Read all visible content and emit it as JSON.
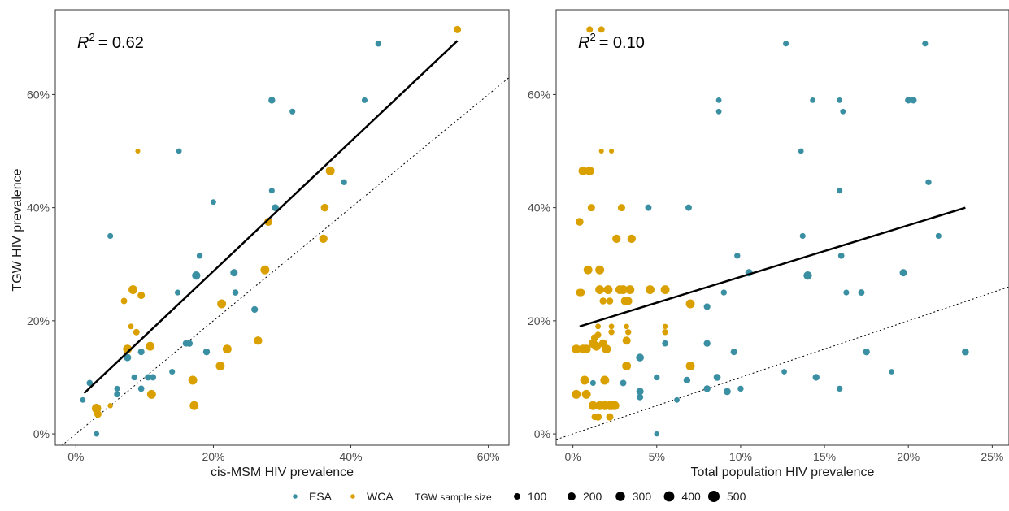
{
  "colors": {
    "ESA": "#3a8fa3",
    "WCA": "#d9a000",
    "fit_line": "#000000",
    "panel_border": "#333333",
    "text": "#1a1a1a"
  },
  "y_axis": {
    "label": "TGW HIV prevalence",
    "ylim": [
      -0.02,
      0.75
    ],
    "ticks": [
      0,
      0.2,
      0.4,
      0.6
    ],
    "tick_labels": [
      "0%",
      "20%",
      "40%",
      "60%"
    ]
  },
  "chart_data": [
    {
      "type": "scatter",
      "xlabel": "cis-MSM HIV prevalence",
      "ylabel": "TGW HIV prevalence",
      "xlim": [
        -0.03,
        0.63
      ],
      "x_ticks": [
        0,
        0.2,
        0.4,
        0.6
      ],
      "x_tick_labels": [
        "0%",
        "20%",
        "40%",
        "60%"
      ],
      "annotation": {
        "r2_prefix": "R",
        "r2_sup": "2",
        "r2_value": "= 0.62"
      },
      "fit_line": {
        "x": [
          0.012,
          0.555
        ],
        "y": [
          0.072,
          0.695
        ]
      },
      "reference_line": {
        "x": [
          -0.03,
          0.63
        ],
        "y": [
          -0.03,
          0.63
        ]
      },
      "series": [
        {
          "name": "ESA",
          "points": [
            [
              0.01,
              0.06,
              60
            ],
            [
              0.02,
              0.09,
              90
            ],
            [
              0.03,
              0.0,
              60
            ],
            [
              0.05,
              0.35,
              70
            ],
            [
              0.06,
              0.08,
              70
            ],
            [
              0.06,
              0.07,
              90
            ],
            [
              0.075,
              0.135,
              150
            ],
            [
              0.085,
              0.1,
              80
            ],
            [
              0.095,
              0.145,
              110
            ],
            [
              0.095,
              0.08,
              90
            ],
            [
              0.105,
              0.1,
              100
            ],
            [
              0.112,
              0.1,
              100
            ],
            [
              0.14,
              0.11,
              70
            ],
            [
              0.148,
              0.25,
              70
            ],
            [
              0.15,
              0.5,
              60
            ],
            [
              0.16,
              0.16,
              100
            ],
            [
              0.165,
              0.16,
              120
            ],
            [
              0.175,
              0.28,
              220
            ],
            [
              0.18,
              0.315,
              80
            ],
            [
              0.19,
              0.145,
              120
            ],
            [
              0.2,
              0.41,
              60
            ],
            [
              0.23,
              0.285,
              150
            ],
            [
              0.232,
              0.25,
              90
            ],
            [
              0.26,
              0.22,
              110
            ],
            [
              0.285,
              0.59,
              120
            ],
            [
              0.285,
              0.43,
              70
            ],
            [
              0.29,
              0.4,
              130
            ],
            [
              0.315,
              0.57,
              70
            ],
            [
              0.39,
              0.445,
              80
            ],
            [
              0.42,
              0.59,
              70
            ],
            [
              0.44,
              0.69,
              80
            ]
          ]
        },
        {
          "name": "WCA",
          "points": [
            [
              0.03,
              0.045,
              300
            ],
            [
              0.032,
              0.035,
              150
            ],
            [
              0.05,
              0.05,
              50
            ],
            [
              0.07,
              0.235,
              100
            ],
            [
              0.075,
              0.15,
              260
            ],
            [
              0.08,
              0.19,
              60
            ],
            [
              0.083,
              0.255,
              260
            ],
            [
              0.088,
              0.18,
              100
            ],
            [
              0.09,
              0.5,
              40
            ],
            [
              0.095,
              0.245,
              150
            ],
            [
              0.108,
              0.155,
              260
            ],
            [
              0.11,
              0.07,
              260
            ],
            [
              0.17,
              0.095,
              260
            ],
            [
              0.172,
              0.05,
              260
            ],
            [
              0.21,
              0.12,
              260
            ],
            [
              0.212,
              0.23,
              260
            ],
            [
              0.22,
              0.15,
              260
            ],
            [
              0.265,
              0.165,
              220
            ],
            [
              0.275,
              0.29,
              260
            ],
            [
              0.28,
              0.375,
              200
            ],
            [
              0.36,
              0.345,
              220
            ],
            [
              0.362,
              0.4,
              180
            ],
            [
              0.37,
              0.465,
              260
            ],
            [
              0.555,
              0.715,
              150
            ]
          ]
        }
      ]
    },
    {
      "type": "scatter",
      "xlabel": "Total population HIV prevalence",
      "ylabel": "TGW HIV prevalence",
      "xlim": [
        -0.01,
        0.26
      ],
      "x_ticks": [
        0,
        0.05,
        0.1,
        0.15,
        0.2,
        0.25
      ],
      "x_tick_labels": [
        "0%",
        "5%",
        "10%",
        "15%",
        "20%",
        "25%"
      ],
      "annotation": {
        "r2_prefix": "R",
        "r2_sup": "2",
        "r2_value": "= 0.10"
      },
      "fit_line": {
        "x": [
          0.004,
          0.234
        ],
        "y": [
          0.19,
          0.4
        ]
      },
      "reference_line": {
        "x": [
          -0.01,
          0.26
        ],
        "y": [
          -0.01,
          0.26
        ]
      },
      "series": [
        {
          "name": "ESA",
          "points": [
            [
              0.012,
              0.09,
              70
            ],
            [
              0.03,
              0.09,
              100
            ],
            [
              0.04,
              0.135,
              180
            ],
            [
              0.04,
              0.075,
              150
            ],
            [
              0.04,
              0.065,
              100
            ],
            [
              0.045,
              0.4,
              100
            ],
            [
              0.05,
              0.1,
              80
            ],
            [
              0.05,
              0.0,
              50
            ],
            [
              0.055,
              0.16,
              90
            ],
            [
              0.062,
              0.06,
              60
            ],
            [
              0.068,
              0.095,
              120
            ],
            [
              0.069,
              0.4,
              100
            ],
            [
              0.08,
              0.225,
              110
            ],
            [
              0.08,
              0.16,
              120
            ],
            [
              0.08,
              0.08,
              120
            ],
            [
              0.086,
              0.1,
              130
            ],
            [
              0.087,
              0.59,
              60
            ],
            [
              0.087,
              0.57,
              60
            ],
            [
              0.09,
              0.25,
              80
            ],
            [
              0.092,
              0.075,
              140
            ],
            [
              0.096,
              0.145,
              110
            ],
            [
              0.098,
              0.315,
              80
            ],
            [
              0.1,
              0.08,
              80
            ],
            [
              0.105,
              0.285,
              150
            ],
            [
              0.126,
              0.11,
              60
            ],
            [
              0.127,
              0.69,
              70
            ],
            [
              0.136,
              0.5,
              60
            ],
            [
              0.137,
              0.35,
              70
            ],
            [
              0.14,
              0.28,
              220
            ],
            [
              0.143,
              0.59,
              60
            ],
            [
              0.145,
              0.1,
              120
            ],
            [
              0.159,
              0.59,
              60
            ],
            [
              0.159,
              0.43,
              70
            ],
            [
              0.159,
              0.08,
              80
            ],
            [
              0.16,
              0.315,
              90
            ],
            [
              0.161,
              0.57,
              60
            ],
            [
              0.163,
              0.25,
              70
            ],
            [
              0.172,
              0.25,
              100
            ],
            [
              0.175,
              0.145,
              120
            ],
            [
              0.19,
              0.11,
              60
            ],
            [
              0.197,
              0.285,
              150
            ],
            [
              0.2,
              0.59,
              110
            ],
            [
              0.203,
              0.59,
              110
            ],
            [
              0.21,
              0.69,
              70
            ],
            [
              0.212,
              0.445,
              80
            ],
            [
              0.218,
              0.35,
              70
            ],
            [
              0.234,
              0.145,
              130
            ]
          ]
        },
        {
          "name": "WCA",
          "points": [
            [
              0.002,
              0.15,
              260
            ],
            [
              0.002,
              0.07,
              260
            ],
            [
              0.004,
              0.375,
              180
            ],
            [
              0.004,
              0.25,
              150
            ],
            [
              0.005,
              0.25,
              150
            ],
            [
              0.006,
              0.465,
              260
            ],
            [
              0.006,
              0.15,
              260
            ],
            [
              0.007,
              0.095,
              260
            ],
            [
              0.008,
              0.07,
              260
            ],
            [
              0.008,
              0.15,
              260
            ],
            [
              0.009,
              0.29,
              250
            ],
            [
              0.01,
              0.465,
              260
            ],
            [
              0.01,
              0.715,
              100
            ],
            [
              0.011,
              0.4,
              150
            ],
            [
              0.012,
              0.05,
              260
            ],
            [
              0.012,
              0.16,
              260
            ],
            [
              0.013,
              0.17,
              150
            ],
            [
              0.013,
              0.03,
              100
            ],
            [
              0.014,
              0.155,
              260
            ],
            [
              0.015,
              0.19,
              60
            ],
            [
              0.015,
              0.03,
              150
            ],
            [
              0.015,
              0.175,
              100
            ],
            [
              0.016,
              0.255,
              260
            ],
            [
              0.016,
              0.05,
              260
            ],
            [
              0.016,
              0.29,
              260
            ],
            [
              0.017,
              0.715,
              100
            ],
            [
              0.017,
              0.5,
              40
            ],
            [
              0.018,
              0.235,
              130
            ],
            [
              0.018,
              0.16,
              200
            ],
            [
              0.019,
              0.05,
              260
            ],
            [
              0.019,
              0.095,
              260
            ],
            [
              0.02,
              0.15,
              260
            ],
            [
              0.021,
              0.255,
              260
            ],
            [
              0.022,
              0.05,
              260
            ],
            [
              0.022,
              0.03,
              150
            ],
            [
              0.022,
              0.235,
              130
            ],
            [
              0.023,
              0.18,
              80
            ],
            [
              0.023,
              0.19,
              60
            ],
            [
              0.023,
              0.05,
              260
            ],
            [
              0.023,
              0.5,
              40
            ],
            [
              0.025,
              0.05,
              260
            ],
            [
              0.026,
              0.345,
              220
            ],
            [
              0.028,
              0.255,
              260
            ],
            [
              0.029,
              0.4,
              150
            ],
            [
              0.03,
              0.255,
              260
            ],
            [
              0.031,
              0.235,
              200
            ],
            [
              0.032,
              0.19,
              50
            ],
            [
              0.032,
              0.12,
              260
            ],
            [
              0.032,
              0.165,
              200
            ],
            [
              0.033,
              0.235,
              200
            ],
            [
              0.033,
              0.18,
              80
            ],
            [
              0.034,
              0.255,
              260
            ],
            [
              0.035,
              0.345,
              220
            ],
            [
              0.046,
              0.255,
              260
            ],
            [
              0.055,
              0.255,
              260
            ],
            [
              0.055,
              0.19,
              50
            ],
            [
              0.055,
              0.18,
              80
            ],
            [
              0.07,
              0.23,
              260
            ],
            [
              0.07,
              0.12,
              260
            ]
          ]
        }
      ]
    }
  ],
  "legend": {
    "series": [
      {
        "name": "ESA",
        "color_key": "ESA"
      },
      {
        "name": "WCA",
        "color_key": "WCA"
      }
    ],
    "size_title": "TGW sample size",
    "sizes": [
      {
        "label": "100",
        "value": 100
      },
      {
        "label": "200",
        "value": 200
      },
      {
        "label": "300",
        "value": 300
      },
      {
        "label": "400",
        "value": 400
      },
      {
        "label": "500",
        "value": 500
      }
    ]
  }
}
